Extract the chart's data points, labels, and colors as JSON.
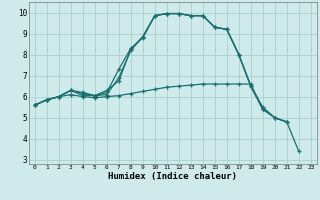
{
  "xlabel": "Humidex (Indice chaleur)",
  "bg_color": "#ceeaea",
  "grid_color": "#aacece",
  "line_color": "#1a7070",
  "x_ticks": [
    0,
    1,
    2,
    3,
    4,
    5,
    6,
    7,
    8,
    9,
    10,
    11,
    12,
    13,
    14,
    15,
    16,
    17,
    18,
    19,
    20,
    21,
    22,
    23
  ],
  "y_ticks": [
    3,
    4,
    5,
    6,
    7,
    8,
    9,
    10
  ],
  "ylim": [
    2.8,
    10.5
  ],
  "xlim": [
    -0.5,
    23.5
  ],
  "line1_x": [
    0,
    1,
    2,
    3,
    4,
    5,
    6,
    7,
    8,
    9,
    10,
    11,
    12,
    13,
    14,
    15,
    16,
    17,
    18,
    19,
    20,
    21,
    22
  ],
  "line1_y": [
    5.6,
    5.85,
    6.0,
    6.3,
    6.2,
    6.05,
    6.1,
    6.9,
    8.2,
    8.85,
    9.85,
    9.95,
    9.95,
    9.85,
    9.85,
    9.3,
    9.2,
    8.0,
    6.5,
    5.5,
    5.0,
    4.8,
    3.4
  ],
  "line2_x": [
    0,
    1,
    2,
    3,
    4,
    5,
    6,
    7,
    8,
    9,
    10,
    11,
    12,
    13,
    14,
    15,
    16,
    17,
    18,
    19,
    20,
    21
  ],
  "line2_y": [
    5.6,
    5.85,
    6.0,
    6.3,
    6.15,
    6.05,
    6.2,
    7.3,
    8.3,
    8.8,
    9.85,
    9.95,
    9.95,
    9.85,
    9.85,
    9.3,
    9.2,
    8.0,
    6.5,
    5.4,
    5.0,
    4.8
  ],
  "line3_x": [
    0,
    1,
    2,
    3,
    4,
    5,
    6,
    7,
    8,
    9,
    10,
    11,
    12,
    13,
    14,
    15,
    16,
    17,
    18,
    19,
    20,
    21
  ],
  "line3_y": [
    5.6,
    5.85,
    6.0,
    6.3,
    6.05,
    6.05,
    6.3,
    6.75,
    8.25,
    8.85,
    9.85,
    9.95,
    9.95,
    9.85,
    9.85,
    9.3,
    9.2,
    8.0,
    6.5,
    5.4,
    5.0,
    4.8
  ],
  "line4_x": [
    0,
    1,
    2,
    3,
    4,
    5,
    6,
    7,
    8,
    9,
    10,
    11,
    12,
    13,
    14,
    15,
    16,
    17,
    18,
    19
  ],
  "line4_y": [
    5.6,
    5.85,
    6.0,
    6.1,
    6.0,
    5.95,
    6.0,
    6.05,
    6.15,
    6.25,
    6.35,
    6.45,
    6.5,
    6.55,
    6.6,
    6.6,
    6.6,
    6.6,
    6.6,
    5.4
  ]
}
